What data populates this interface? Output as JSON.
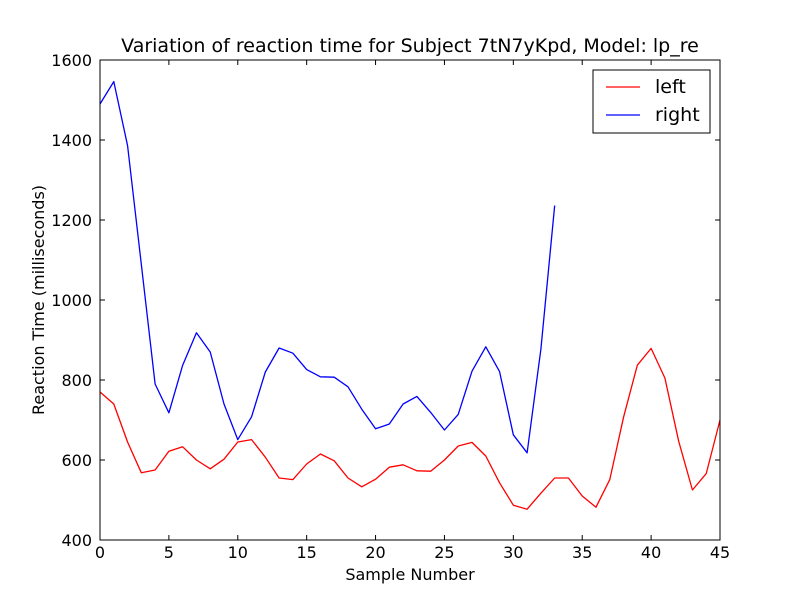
{
  "chart_data": {
    "type": "line",
    "title": "Variation of reaction time for Subject 7tN7yKpd, Model: lp_re",
    "xlabel": "Sample Number",
    "ylabel": "Reaction Time (milliseconds)",
    "xlim": [
      0,
      45
    ],
    "ylim": [
      400,
      1600
    ],
    "xticks": [
      "0",
      "5",
      "10",
      "15",
      "20",
      "25",
      "30",
      "35",
      "40",
      "45"
    ],
    "yticks": [
      "400",
      "600",
      "800",
      "1000",
      "1200",
      "1400",
      "1600"
    ],
    "grid": false,
    "legend_position": "top-right",
    "series": [
      {
        "name": "left",
        "color": "#ff0000",
        "x": [
          0,
          1,
          2,
          3,
          4,
          5,
          6,
          7,
          8,
          9,
          10,
          11,
          12,
          13,
          14,
          15,
          16,
          17,
          18,
          19,
          20,
          21,
          22,
          23,
          24,
          25,
          26,
          27,
          28,
          29,
          30,
          31,
          32,
          33,
          34,
          35,
          36,
          37,
          38,
          39,
          40,
          41,
          42,
          43,
          44,
          45
        ],
        "values": [
          770,
          740,
          645,
          568,
          575,
          622,
          633,
          600,
          578,
          602,
          645,
          651,
          607,
          555,
          551,
          590,
          615,
          598,
          555,
          533,
          552,
          582,
          588,
          573,
          572,
          600,
          635,
          644,
          610,
          543,
          487,
          477,
          517,
          555,
          555,
          510,
          482,
          551,
          707,
          837,
          879,
          805,
          647,
          525,
          566,
          700
        ]
      },
      {
        "name": "right",
        "color": "#0000ff",
        "x": [
          0,
          1,
          2,
          3,
          4,
          5,
          6,
          7,
          8,
          9,
          10,
          11,
          12,
          13,
          14,
          15,
          16,
          17,
          18,
          19,
          20,
          21,
          22,
          23,
          24,
          25,
          26,
          27,
          28,
          29,
          30,
          31,
          32,
          33
        ],
        "values": [
          1490,
          1546,
          1386,
          1089,
          790,
          718,
          837,
          918,
          870,
          740,
          651,
          708,
          820,
          880,
          867,
          826,
          808,
          807,
          783,
          727,
          678,
          690,
          740,
          759,
          719,
          675,
          714,
          822,
          883,
          821,
          663,
          618,
          877,
          1236
        ]
      }
    ]
  }
}
